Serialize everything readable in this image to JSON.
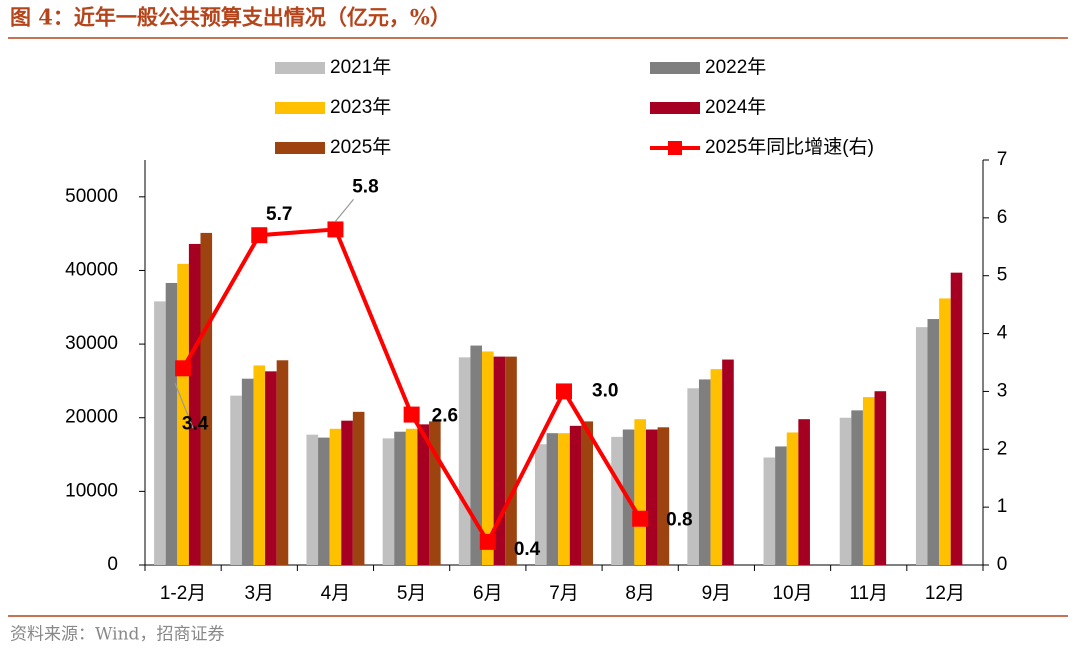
{
  "title": "图 4：近年一般公共预算支出情况（亿元，%）",
  "source": "资料来源：Wind，招商证券",
  "chart_data": {
    "type": "bar_line",
    "categories": [
      "1-2月",
      "3月",
      "4月",
      "5月",
      "6月",
      "7月",
      "8月",
      "9月",
      "10月",
      "11月",
      "12月"
    ],
    "series": [
      {
        "name": "2021年",
        "color": "#c0c0c0",
        "values": [
          35800,
          23000,
          17700,
          17200,
          28200,
          16400,
          17400,
          24000,
          14600,
          20000,
          32300
        ]
      },
      {
        "name": "2022年",
        "color": "#7f7f7f",
        "values": [
          38300,
          25300,
          17300,
          18100,
          29800,
          17900,
          18400,
          25200,
          16100,
          21000,
          33400
        ]
      },
      {
        "name": "2023年",
        "color": "#ffc000",
        "values": [
          40900,
          27100,
          18500,
          18500,
          29000,
          17900,
          19800,
          26600,
          18000,
          22800,
          36200
        ]
      },
      {
        "name": "2024年",
        "color": "#a50021",
        "values": [
          43600,
          26300,
          19600,
          19100,
          28300,
          18900,
          18400,
          27900,
          19800,
          23600,
          39700
        ]
      },
      {
        "name": "2025年",
        "color": "#9c4310",
        "values": [
          45100,
          27800,
          20800,
          19500,
          28300,
          19500,
          18700,
          null,
          null,
          null,
          null
        ]
      },
      {
        "name": "2025年同比增速(右)",
        "color": "#ff0000",
        "axis": "y2",
        "type": "line",
        "values": [
          3.4,
          5.7,
          5.8,
          2.6,
          0.4,
          3.0,
          0.8,
          null,
          null,
          null,
          null
        ],
        "value_labels": [
          "3.4",
          "5.7",
          "5.8",
          "2.6",
          "0.4",
          "3.0",
          "0.8",
          null,
          null,
          null,
          null
        ]
      }
    ],
    "ylim": [
      0,
      55000
    ],
    "yticks": [
      0,
      10000,
      20000,
      30000,
      40000,
      50000
    ],
    "y2lim": [
      0,
      7
    ],
    "y2ticks": [
      0,
      1,
      2,
      3,
      4,
      5,
      6,
      7
    ]
  }
}
